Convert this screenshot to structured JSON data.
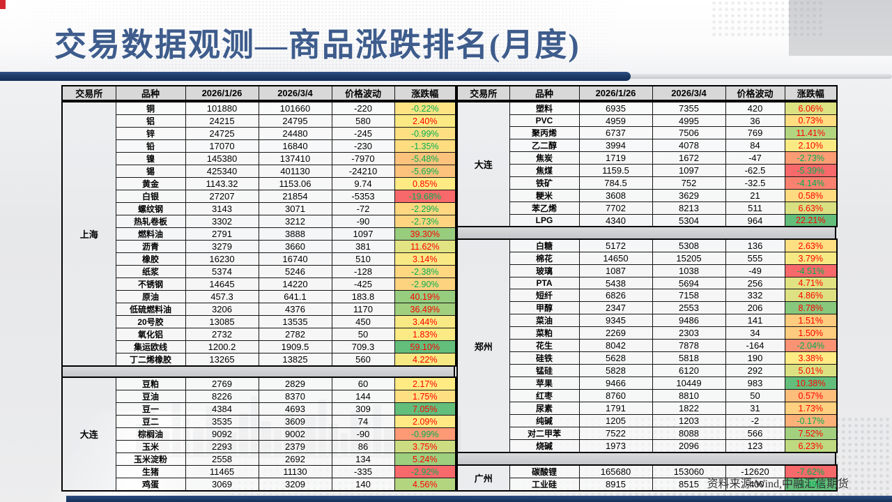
{
  "title": "交易数据观测—商品涨跌排名(月度)",
  "source_note": "资料来源:Wind,中融汇信期货",
  "columns": [
    "交易所",
    "品种",
    "2026/1/26",
    "2026/3/4",
    "价格波动",
    "涨跌幅"
  ],
  "heatmap": {
    "min_color": "#F8696B",
    "mid_color": "#FFEB84",
    "max_color": "#63BE7B",
    "positive_text_color": "#FF0000",
    "negative_text_color": "#00B050"
  },
  "panels": [
    {
      "sections": [
        {
          "exchange": "上海",
          "rows": [
            [
              "铜",
              "101880",
              "101660",
              "-220",
              "-0.22%"
            ],
            [
              "铝",
              "24215",
              "24795",
              "580",
              "2.40%"
            ],
            [
              "锌",
              "24725",
              "24480",
              "-245",
              "-0.99%"
            ],
            [
              "铅",
              "17070",
              "16840",
              "-230",
              "-1.35%"
            ],
            [
              "镍",
              "145380",
              "137410",
              "-7970",
              "-5.48%"
            ],
            [
              "锡",
              "425340",
              "401130",
              "-24210",
              "-5.69%"
            ],
            [
              "黄金",
              "1143.32",
              "1153.06",
              "9.74",
              "0.85%"
            ],
            [
              "白银",
              "27207",
              "21854",
              "-5353",
              "-19.68%"
            ],
            [
              "螺纹钢",
              "3143",
              "3071",
              "-72",
              "-2.29%"
            ],
            [
              "热轧卷板",
              "3302",
              "3212",
              "-90",
              "-2.73%"
            ],
            [
              "燃料油",
              "2791",
              "3888",
              "1097",
              "39.30%"
            ],
            [
              "沥青",
              "3279",
              "3660",
              "381",
              "11.62%"
            ],
            [
              "橡胶",
              "16230",
              "16740",
              "510",
              "3.14%"
            ],
            [
              "纸浆",
              "5374",
              "5246",
              "-128",
              "-2.38%"
            ],
            [
              "不锈钢",
              "14645",
              "14220",
              "-425",
              "-2.90%"
            ],
            [
              "原油",
              "457.3",
              "641.1",
              "183.8",
              "40.19%"
            ],
            [
              "低硫燃料油",
              "3206",
              "4376",
              "1170",
              "36.49%"
            ],
            [
              "20号胶",
              "13085",
              "13535",
              "450",
              "3.44%"
            ],
            [
              "氧化铝",
              "2732",
              "2782",
              "50",
              "1.83%"
            ],
            [
              "集运欧线",
              "1200.2",
              "1909.5",
              "709.3",
              "59.10%"
            ],
            [
              "丁二烯橡胶",
              "13265",
              "13825",
              "560",
              "4.22%"
            ]
          ]
        },
        {
          "exchange": "大连",
          "rows": [
            [
              "豆粕",
              "2769",
              "2829",
              "60",
              "2.17%"
            ],
            [
              "豆油",
              "8226",
              "8370",
              "144",
              "1.75%"
            ],
            [
              "豆一",
              "4384",
              "4693",
              "309",
              "7.05%"
            ],
            [
              "豆二",
              "3535",
              "3609",
              "74",
              "2.09%"
            ],
            [
              "棕榈油",
              "9092",
              "9002",
              "-90",
              "-0.99%"
            ],
            [
              "玉米",
              "2293",
              "2379",
              "86",
              "3.75%"
            ],
            [
              "玉米淀粉",
              "2558",
              "2692",
              "134",
              "5.24%"
            ],
            [
              "生猪",
              "11465",
              "11130",
              "-335",
              "-2.92%"
            ],
            [
              "鸡蛋",
              "3069",
              "3209",
              "140",
              "4.56%"
            ]
          ]
        }
      ]
    },
    {
      "sections": [
        {
          "exchange": "大连",
          "rows": [
            [
              "塑料",
              "6935",
              "7355",
              "420",
              "6.06%"
            ],
            [
              "PVC",
              "4959",
              "4995",
              "36",
              "0.73%"
            ],
            [
              "聚丙烯",
              "6737",
              "7506",
              "769",
              "11.41%"
            ],
            [
              "乙二醇",
              "3994",
              "4078",
              "84",
              "2.10%"
            ],
            [
              "焦炭",
              "1719",
              "1672",
              "-47",
              "-2.73%"
            ],
            [
              "焦煤",
              "1159.5",
              "1097",
              "-62.5",
              "-5.39%"
            ],
            [
              "铁矿",
              "784.5",
              "752",
              "-32.5",
              "-4.14%"
            ],
            [
              "粳米",
              "3608",
              "3629",
              "21",
              "0.58%"
            ],
            [
              "苯乙烯",
              "7702",
              "8213",
              "511",
              "6.63%"
            ],
            [
              "LPG",
              "4340",
              "5304",
              "964",
              "22.21%"
            ]
          ]
        },
        {
          "exchange": "郑州",
          "rows": [
            [
              "白糖",
              "5172",
              "5308",
              "136",
              "2.63%"
            ],
            [
              "棉花",
              "14650",
              "15205",
              "555",
              "3.79%"
            ],
            [
              "玻璃",
              "1087",
              "1038",
              "-49",
              "-4.51%"
            ],
            [
              "PTA",
              "5438",
              "5694",
              "256",
              "4.71%"
            ],
            [
              "短纤",
              "6826",
              "7158",
              "332",
              "4.86%"
            ],
            [
              "甲醇",
              "2347",
              "2553",
              "206",
              "8.78%"
            ],
            [
              "菜油",
              "9345",
              "9486",
              "141",
              "1.51%"
            ],
            [
              "菜粕",
              "2269",
              "2303",
              "34",
              "1.50%"
            ],
            [
              "花生",
              "8042",
              "7878",
              "-164",
              "-2.04%"
            ],
            [
              "硅铁",
              "5628",
              "5818",
              "190",
              "3.38%"
            ],
            [
              "锰硅",
              "5828",
              "6120",
              "292",
              "5.01%"
            ],
            [
              "苹果",
              "9466",
              "10449",
              "983",
              "10.38%"
            ],
            [
              "红枣",
              "8760",
              "8810",
              "50",
              "0.57%"
            ],
            [
              "尿素",
              "1791",
              "1822",
              "31",
              "1.73%"
            ],
            [
              "纯碱",
              "1205",
              "1203",
              "-2",
              "-0.17%"
            ],
            [
              "对二甲苯",
              "7522",
              "8088",
              "566",
              "7.52%"
            ],
            [
              "烧碱",
              "1973",
              "2096",
              "123",
              "6.23%"
            ]
          ]
        },
        {
          "exchange": "广州",
          "rows": [
            [
              "碳酸锂",
              "165680",
              "153060",
              "-12620",
              "-7.62%"
            ],
            [
              "工业硅",
              "8915",
              "8515",
              "-400",
              "-4.49%"
            ]
          ]
        }
      ]
    }
  ]
}
